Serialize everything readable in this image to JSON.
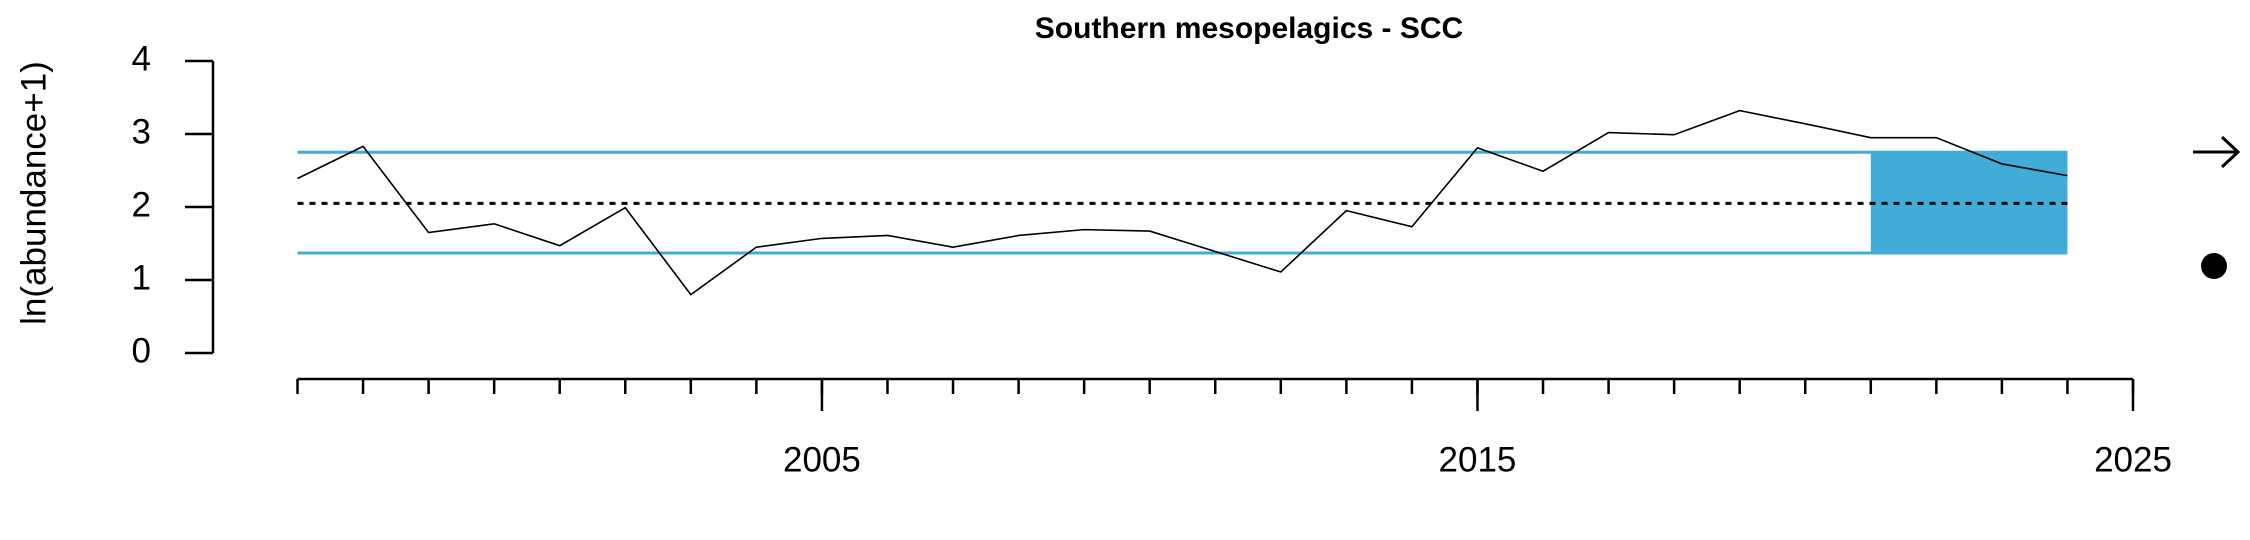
{
  "chart_data": {
    "type": "line",
    "title": "Southern mesopelagics - SCC",
    "y_label": "ln(abundance+1)",
    "x": [
      1997,
      1998,
      1999,
      2000,
      2001,
      2002,
      2003,
      2004,
      2005,
      2006,
      2007,
      2008,
      2009,
      2010,
      2011,
      2012,
      2013,
      2014,
      2015,
      2016,
      2017,
      2018,
      2019,
      2020,
      2021,
      2022,
      2023,
      2024
    ],
    "series": [
      {
        "color": "#000000",
        "values": [
          2.39,
          2.83,
          1.65,
          1.77,
          1.47,
          1.99,
          0.8,
          1.45,
          1.57,
          1.61,
          1.45,
          1.61,
          1.69,
          1.67,
          1.39,
          1.11,
          1.95,
          1.73,
          2.81,
          2.49,
          3.02,
          2.99,
          3.32,
          3.14,
          2.95,
          2.95,
          2.59,
          2.43
        ]
      }
    ],
    "mean": 2.05,
    "upper": 2.75,
    "lower": 1.37,
    "band_color": "#41acd7",
    "shade_x": [
      2021,
      2024
    ],
    "xlim": [
      1997,
      2025
    ],
    "xticks": [
      2005,
      2015,
      2025
    ],
    "xminor_ticks": [
      1997,
      1998,
      1999,
      2000,
      2001,
      2002,
      2003,
      2004,
      2005,
      2006,
      2007,
      2008,
      2009,
      2010,
      2011,
      2012,
      2013,
      2014,
      2015,
      2016,
      2017,
      2018,
      2019,
      2020,
      2021,
      2022,
      2023,
      2024,
      2025
    ],
    "ylim": [
      0,
      4
    ],
    "yticks": [
      0,
      1,
      2,
      3,
      4
    ]
  }
}
